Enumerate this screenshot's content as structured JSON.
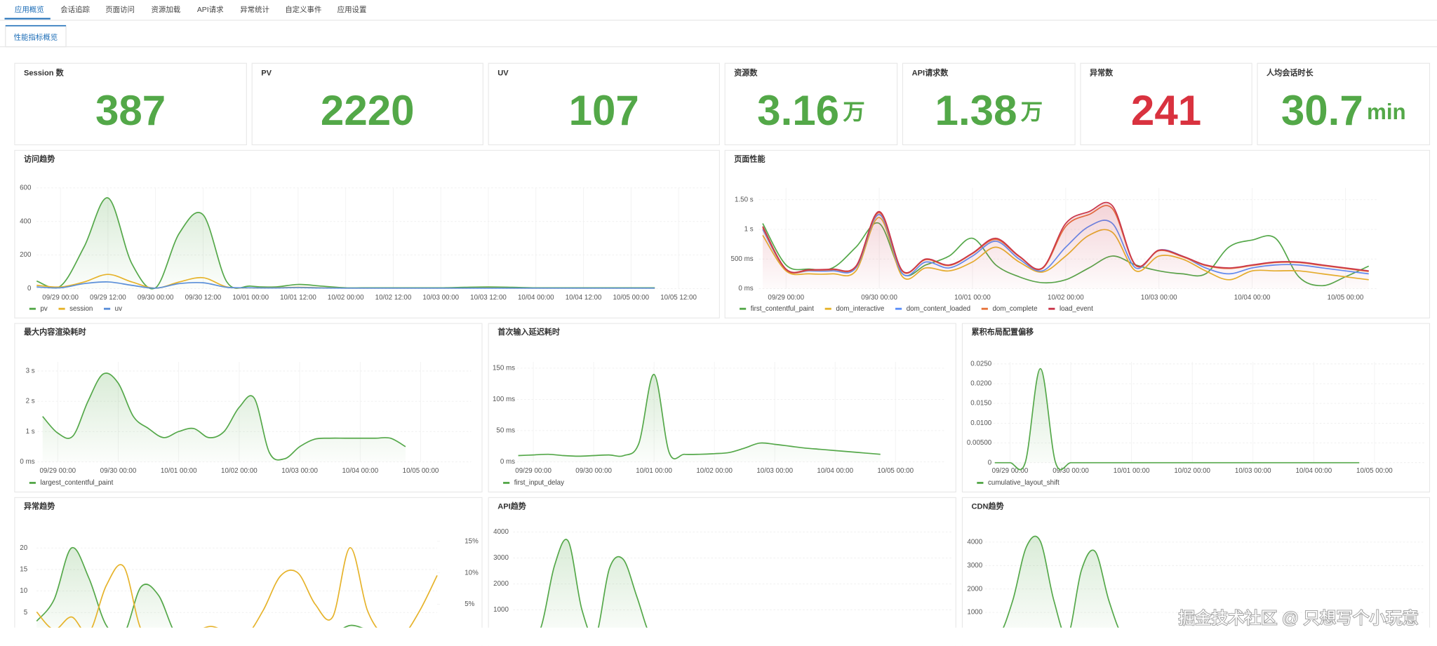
{
  "tabs": [
    "应用概览",
    "会话追踪",
    "页面访问",
    "资源加载",
    "API请求",
    "异常统计",
    "自定义事件",
    "应用设置"
  ],
  "subtab": "性能指标概览",
  "stats": [
    {
      "title": "Session 数",
      "value": 387,
      "color": "#53a848"
    },
    {
      "title": "PV",
      "value": 2220,
      "color": "#53a848"
    },
    {
      "title": "UV",
      "value": 107,
      "color": "#53a848"
    },
    {
      "title": "资源数",
      "value": 3.16,
      "unit": "万",
      "color": "#53a848"
    },
    {
      "title": "API请求数",
      "value": 1.38,
      "unit": "万",
      "color": "#53a848"
    },
    {
      "title": "异常数",
      "value": 241,
      "color": "#d9323f"
    },
    {
      "title": "人均会话时长",
      "value": 30.7,
      "unit": "min",
      "color": "#53a848"
    }
  ],
  "chart_data": [
    {
      "type": "line",
      "title": "访问趋势",
      "grid": true,
      "legend": "bottom-left",
      "x": [
        "09/28 18:00",
        "09/29 00:00",
        "09/29 06:00",
        "09/29 12:00",
        "09/29 18:00",
        "09/30 00:00",
        "09/30 06:00",
        "09/30 12:00",
        "09/30 18:00",
        "10/01 00:00",
        "10/01 06:00",
        "10/01 12:00",
        "10/01 18:00",
        "10/02 00:00",
        "10/02 06:00",
        "10/02 12:00",
        "10/02 18:00",
        "10/03 00:00",
        "10/03 06:00",
        "10/03 12:00",
        "10/03 18:00",
        "10/04 00:00",
        "10/04 06:00",
        "10/04 12:00",
        "10/04 18:00",
        "10/05 00:00",
        "10/05 06:00"
      ],
      "xlim": [
        "09/28 18:00",
        "10/05 20:00"
      ],
      "xticks": [
        "09/29 00:00",
        "09/29 12:00",
        "09/30 00:00",
        "09/30 12:00",
        "10/01 00:00",
        "10/01 12:00",
        "10/02 00:00",
        "10/02 12:00",
        "10/03 00:00",
        "10/03 12:00",
        "10/04 00:00",
        "10/04 12:00",
        "10/05 00:00",
        "10/05 12:00"
      ],
      "ylim": [
        0,
        600
      ],
      "yticks": [
        0,
        200,
        400,
        600
      ],
      "series": [
        {
          "name": "pv",
          "color": "#55a84a",
          "area": true,
          "values": [
            45,
            15,
            250,
            540,
            150,
            5,
            330,
            440,
            40,
            15,
            10,
            25,
            15,
            5,
            5,
            5,
            5,
            5,
            8,
            10,
            8,
            5,
            5,
            5,
            5,
            5,
            5
          ]
        },
        {
          "name": "session",
          "color": "#e6b32b",
          "values": [
            20,
            10,
            40,
            85,
            40,
            3,
            40,
            65,
            10,
            5,
            5,
            8,
            5,
            3,
            3,
            3,
            3,
            3,
            3,
            4,
            3,
            3,
            3,
            3,
            3,
            3,
            3
          ]
        },
        {
          "name": "uv",
          "color": "#5b8fd9",
          "values": [
            10,
            5,
            30,
            40,
            20,
            3,
            30,
            35,
            8,
            5,
            4,
            6,
            4,
            3,
            3,
            3,
            3,
            3,
            3,
            3,
            3,
            3,
            3,
            3,
            3,
            3,
            3
          ]
        }
      ]
    },
    {
      "type": "line",
      "title": "页面性能",
      "grid": true,
      "legend": "bottom-left",
      "x": [
        "09/28 18:00",
        "09/29 00:00",
        "09/29 06:00",
        "09/29 12:00",
        "09/29 18:00",
        "09/30 00:00",
        "09/30 06:00",
        "09/30 12:00",
        "09/30 18:00",
        "10/01 00:00",
        "10/01 06:00",
        "10/01 12:00",
        "10/01 18:00",
        "10/02 00:00",
        "10/02 06:00",
        "10/02 12:00",
        "10/02 18:00",
        "10/03 00:00",
        "10/03 06:00",
        "10/03 12:00",
        "10/03 18:00",
        "10/04 00:00",
        "10/04 06:00",
        "10/04 12:00",
        "10/04 18:00",
        "10/05 00:00",
        "10/05 06:00"
      ],
      "xlim": [
        "09/28 17:00",
        "10/05 08:00"
      ],
      "xticks": [
        "09/29 00:00",
        "09/30 00:00",
        "10/01 00:00",
        "10/02 00:00",
        "10/03 00:00",
        "10/04 00:00",
        "10/05 00:00"
      ],
      "ylim": [
        0,
        1700
      ],
      "yticks": [
        {
          "value": 0,
          "label": "0 ms"
        },
        {
          "value": 500,
          "label": "500 ms"
        },
        {
          "value": 1000,
          "label": "1 s"
        },
        {
          "value": 1500,
          "label": "1.50 s"
        }
      ],
      "series": [
        {
          "name": "first_contentful_paint",
          "color": "#55a84a",
          "values": [
            1100,
            400,
            330,
            350,
            700,
            1100,
            250,
            400,
            550,
            850,
            400,
            200,
            100,
            150,
            350,
            550,
            400,
            300,
            250,
            250,
            700,
            820,
            850,
            200,
            50,
            200,
            380
          ]
        },
        {
          "name": "dom_interactive",
          "color": "#e6b32b",
          "values": [
            900,
            300,
            250,
            250,
            300,
            1200,
            200,
            350,
            300,
            450,
            700,
            450,
            280,
            550,
            900,
            950,
            300,
            550,
            500,
            300,
            150,
            300,
            300,
            300,
            250,
            200,
            150
          ]
        },
        {
          "name": "dom_content_loaded",
          "color": "#5b8ff9",
          "values": [
            1000,
            320,
            300,
            300,
            350,
            1250,
            250,
            450,
            350,
            550,
            800,
            500,
            300,
            700,
            1050,
            1100,
            350,
            650,
            550,
            350,
            250,
            350,
            400,
            400,
            350,
            300,
            250
          ]
        },
        {
          "name": "dom_complete",
          "color": "#e8743b",
          "values": [
            1030,
            320,
            310,
            320,
            370,
            1280,
            290,
            490,
            390,
            590,
            830,
            540,
            340,
            1050,
            1250,
            1350,
            390,
            640,
            540,
            390,
            340,
            390,
            440,
            440,
            390,
            340,
            290
          ]
        },
        {
          "name": "load_event",
          "color": "#c9364a",
          "area": true,
          "values": [
            1050,
            330,
            320,
            330,
            380,
            1300,
            300,
            500,
            400,
            600,
            850,
            550,
            350,
            1100,
            1300,
            1400,
            400,
            650,
            550,
            400,
            350,
            400,
            450,
            450,
            400,
            350,
            300
          ]
        }
      ]
    },
    {
      "type": "line",
      "title": "最大内容渲染耗时",
      "grid": true,
      "legend": "bottom-left",
      "x": [
        "09/28 18:00",
        "09/29 00:00",
        "09/29 06:00",
        "09/29 12:00",
        "09/29 18:00",
        "09/30 00:00",
        "09/30 06:00",
        "09/30 12:00",
        "09/30 18:00",
        "10/01 00:00",
        "10/01 06:00",
        "10/01 12:00",
        "10/01 18:00",
        "10/02 00:00",
        "10/02 06:00",
        "10/02 12:00",
        "10/02 18:00",
        "10/03 00:00",
        "10/03 06:00",
        "10/03 12:00",
        "10/03 18:00",
        "10/04 00:00",
        "10/04 06:00",
        "10/04 12:00",
        "10/04 18:00"
      ],
      "xlim": [
        "09/28 16:00",
        "10/05 20:00"
      ],
      "xticks": [
        "09/29 00:00",
        "09/30 00:00",
        "10/01 00:00",
        "10/02 00:00",
        "10/03 00:00",
        "10/04 00:00",
        "10/05 00:00"
      ],
      "ylim": [
        0,
        3300
      ],
      "yticks": [
        {
          "value": 0,
          "label": "0 ms"
        },
        {
          "value": 1000,
          "label": "1 s"
        },
        {
          "value": 2000,
          "label": "2 s"
        },
        {
          "value": 3000,
          "label": "3 s"
        }
      ],
      "series": [
        {
          "name": "largest_contentful_paint",
          "color": "#55a84a",
          "area": true,
          "values": [
            1500,
            950,
            850,
            2000,
            2900,
            2600,
            1500,
            1100,
            800,
            1000,
            1100,
            800,
            1000,
            1800,
            2100,
            300,
            100,
            500,
            750,
            780,
            780,
            780,
            780,
            780,
            500
          ]
        }
      ]
    },
    {
      "type": "line",
      "title": "首次输入延迟耗时",
      "grid": true,
      "legend": "bottom-left",
      "x": [
        "09/28 18:00",
        "09/29 00:00",
        "09/29 06:00",
        "09/29 12:00",
        "09/29 18:00",
        "09/30 00:00",
        "09/30 06:00",
        "09/30 12:00",
        "09/30 18:00",
        "10/01 00:00",
        "10/01 06:00",
        "10/01 12:00",
        "10/01 18:00",
        "10/02 00:00",
        "10/02 06:00",
        "10/02 12:00",
        "10/02 18:00",
        "10/03 00:00",
        "10/03 06:00",
        "10/03 12:00",
        "10/03 18:00",
        "10/04 00:00",
        "10/04 06:00",
        "10/04 12:00",
        "10/04 18:00"
      ],
      "xlim": [
        "09/28 16:00",
        "10/05 20:00"
      ],
      "xticks": [
        "09/29 00:00",
        "09/30 00:00",
        "10/01 00:00",
        "10/02 00:00",
        "10/03 00:00",
        "10/04 00:00",
        "10/05 00:00"
      ],
      "ylim": [
        0,
        160
      ],
      "yticks": [
        {
          "value": 0,
          "label": "0 ms"
        },
        {
          "value": 50,
          "label": "50 ms"
        },
        {
          "value": 100,
          "label": "100 ms"
        },
        {
          "value": 150,
          "label": "150 ms"
        }
      ],
      "series": [
        {
          "name": "first_input_delay",
          "color": "#55a84a",
          "area": true,
          "values": [
            10,
            11,
            12,
            10,
            9,
            10,
            11,
            10,
            30,
            140,
            15,
            12,
            12,
            13,
            15,
            22,
            30,
            28,
            25,
            22,
            20,
            18,
            16,
            14,
            12
          ]
        }
      ]
    },
    {
      "type": "line",
      "title": "累积布局配置偏移",
      "grid": true,
      "legend": "bottom-left",
      "x": [
        "09/28 18:00",
        "09/29 00:00",
        "09/29 06:00",
        "09/29 12:00",
        "09/29 18:00",
        "09/30 00:00",
        "09/30 06:00",
        "09/30 12:00",
        "09/30 18:00",
        "10/01 00:00",
        "10/01 06:00",
        "10/01 12:00",
        "10/01 18:00",
        "10/02 00:00",
        "10/02 06:00",
        "10/02 12:00",
        "10/02 18:00",
        "10/03 00:00",
        "10/03 06:00",
        "10/03 12:00",
        "10/03 18:00",
        "10/04 00:00",
        "10/04 06:00",
        "10/04 12:00",
        "10/04 18:00"
      ],
      "xlim": [
        "09/28 16:00",
        "10/05 20:00"
      ],
      "xticks": [
        "09/29 00:00",
        "09/30 00:00",
        "10/01 00:00",
        "10/02 00:00",
        "10/03 00:00",
        "10/04 00:00",
        "10/05 00:00"
      ],
      "ylim": [
        0,
        0.0255
      ],
      "yticks": [
        0,
        {
          "value": 0.005,
          "label": "0.00500"
        },
        {
          "value": 0.01,
          "label": "0.0100"
        },
        {
          "value": 0.015,
          "label": "0.0150"
        },
        {
          "value": 0.02,
          "label": "0.0200"
        },
        {
          "value": 0.025,
          "label": "0.0250"
        }
      ],
      "series": [
        {
          "name": "cumulative_layout_shift",
          "color": "#55a84a",
          "area": true,
          "values": [
            0,
            0,
            0,
            0.0238,
            0,
            0,
            0,
            0,
            0,
            0,
            0,
            0,
            0,
            0,
            0,
            0,
            0,
            0,
            0,
            0,
            0,
            0,
            0,
            0,
            0
          ]
        }
      ]
    },
    {
      "type": "line",
      "title": "异常趋势",
      "grid": true,
      "ylim": [
        0,
        23
      ],
      "yticks": [
        5,
        10,
        15,
        20
      ],
      "y2lim": [
        0,
        16
      ],
      "y2ticks": [
        {
          "value": 5,
          "label": "5%"
        },
        {
          "value": 10,
          "label": "10%"
        },
        {
          "value": 15,
          "label": "15%"
        }
      ],
      "series": [
        {
          "color": "#55a84a",
          "area": true,
          "values": [
            3,
            8,
            20,
            13,
            2,
            0,
            11,
            9,
            0,
            0,
            0,
            0,
            0,
            0,
            0,
            0,
            0,
            0,
            2,
            1,
            0,
            0,
            0,
            0
          ]
        },
        {
          "color": "#e6b32b",
          "axis": "y2",
          "values": [
            3.8,
            1,
            3,
            0.5,
            8,
            11,
            1,
            0,
            0,
            0.5,
            1.5,
            0.5,
            0,
            4,
            9.5,
            10,
            5,
            3,
            14,
            4,
            0,
            0,
            4,
            9.6
          ]
        }
      ]
    },
    {
      "type": "line",
      "title": "API趋势",
      "grid": true,
      "ylim": [
        0,
        4200
      ],
      "yticks": [
        1000,
        2000,
        3000,
        4000
      ],
      "series": [
        {
          "color": "#55a84a",
          "area": true,
          "values": [
            0,
            0,
            300,
            2700,
            3650,
            1000,
            0,
            2600,
            2950,
            1500,
            0,
            0,
            0,
            0,
            0,
            0,
            0,
            0,
            0,
            0,
            0,
            0,
            0,
            0,
            0,
            0,
            0,
            0,
            0,
            0,
            0,
            0,
            0
          ]
        }
      ]
    },
    {
      "type": "line",
      "title": "CDN趋势",
      "grid": true,
      "ylim": [
        0,
        4300
      ],
      "yticks": [
        1000,
        2000,
        3000,
        4000
      ],
      "series": [
        {
          "color": "#55a84a",
          "area": true,
          "values": [
            0,
            0,
            1500,
            3800,
            4050,
            1500,
            0,
            2800,
            3600,
            1500,
            0,
            0,
            0,
            300,
            0,
            0,
            0,
            0,
            0,
            0,
            0,
            0,
            0,
            0,
            0,
            0,
            0,
            0,
            0,
            0,
            0,
            0,
            0
          ]
        }
      ]
    }
  ],
  "watermark": "掘金技术社区 @ 只想写个小玩意"
}
